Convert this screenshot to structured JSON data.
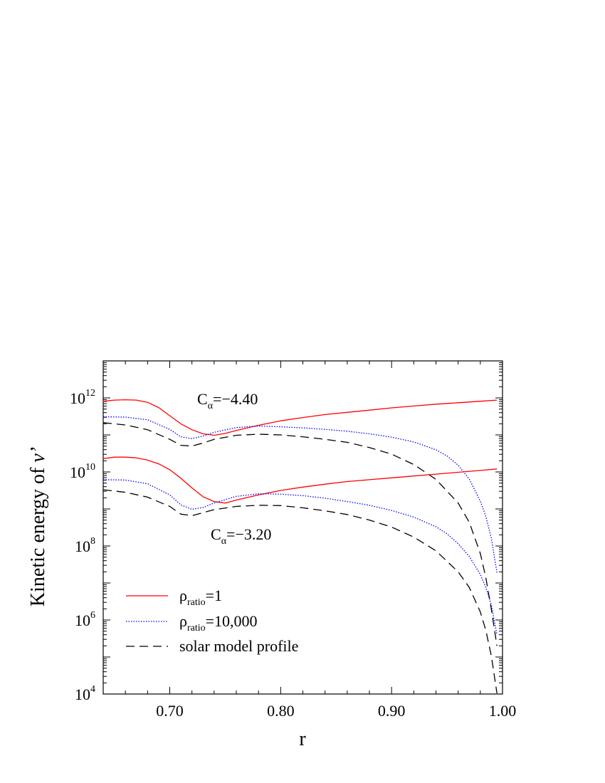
{
  "chart_data": {
    "type": "line",
    "xlabel": "r",
    "ylabel_main": "Kinetic energy of ",
    "ylabel_var": "v’",
    "xlim": [
      0.64,
      1.0
    ],
    "ylim_log10": [
      4,
      13
    ],
    "y_scale": "log",
    "x_ticks": [
      {
        "value": 0.7,
        "label": "0.70"
      },
      {
        "value": 0.8,
        "label": "0.80"
      },
      {
        "value": 0.9,
        "label": "0.90"
      },
      {
        "value": 1.0,
        "label": "1.00"
      }
    ],
    "y_ticks": [
      {
        "exp": 4,
        "base": "10",
        "sup": "4"
      },
      {
        "exp": 6,
        "base": "10",
        "sup": "6"
      },
      {
        "exp": 8,
        "base": "10",
        "sup": "8"
      },
      {
        "exp": 10,
        "base": "10",
        "sup": "10"
      },
      {
        "exp": 12,
        "base": "10",
        "sup": "12"
      }
    ],
    "annotations": [
      {
        "id": "ann-top",
        "main": "C",
        "sub": "α",
        "rest": "=−4.40"
      },
      {
        "id": "ann-bottom",
        "main": "C",
        "sub": "α",
        "rest": "=−3.20"
      }
    ],
    "legend": {
      "placement": "lower-left",
      "entries": [
        {
          "main": "ρ",
          "sub": "ratio",
          "rest": "=1",
          "style": "solid",
          "color": "#ff0000"
        },
        {
          "main": "ρ",
          "sub": "ratio",
          "rest": "=10,000",
          "style": "dotted",
          "color": "#0000ff"
        },
        {
          "main": "",
          "sub": "",
          "rest": "solar model profile",
          "style": "dashed",
          "color": "#000000"
        }
      ]
    },
    "series": [
      {
        "group": "C_alpha=-4.40",
        "style": "solid",
        "color": "#ff0000",
        "x": [
          0.64,
          0.65,
          0.66,
          0.67,
          0.68,
          0.69,
          0.7,
          0.71,
          0.72,
          0.73,
          0.74,
          0.75,
          0.76,
          0.78,
          0.8,
          0.82,
          0.84,
          0.86,
          0.88,
          0.9,
          0.92,
          0.94,
          0.96,
          0.98,
          0.995
        ],
        "log10y": [
          11.91,
          11.94,
          11.95,
          11.94,
          11.88,
          11.74,
          11.52,
          11.3,
          11.14,
          11.03,
          10.99,
          11.04,
          11.12,
          11.26,
          11.38,
          11.47,
          11.55,
          11.61,
          11.67,
          11.73,
          11.78,
          11.83,
          11.87,
          11.91,
          11.94
        ]
      },
      {
        "group": "C_alpha=-4.40",
        "style": "dotted",
        "color": "#0000ff",
        "x": [
          0.64,
          0.66,
          0.68,
          0.7,
          0.71,
          0.72,
          0.73,
          0.74,
          0.76,
          0.78,
          0.8,
          0.82,
          0.84,
          0.86,
          0.88,
          0.9,
          0.92,
          0.94,
          0.95,
          0.96,
          0.97,
          0.98,
          0.985,
          0.99,
          0.995
        ],
        "log10y": [
          11.49,
          11.48,
          11.41,
          11.15,
          10.95,
          10.9,
          10.97,
          11.07,
          11.2,
          11.24,
          11.22,
          11.19,
          11.15,
          11.1,
          11.03,
          10.94,
          10.81,
          10.6,
          10.43,
          10.18,
          9.81,
          9.21,
          8.8,
          8.2,
          7.28
        ]
      },
      {
        "group": "C_alpha=-4.40",
        "style": "dashed",
        "color": "#000000",
        "x": [
          0.64,
          0.66,
          0.68,
          0.7,
          0.71,
          0.72,
          0.73,
          0.74,
          0.76,
          0.78,
          0.8,
          0.82,
          0.84,
          0.86,
          0.88,
          0.9,
          0.92,
          0.94,
          0.96,
          0.97,
          0.98,
          0.985,
          0.99,
          0.995
        ],
        "log10y": [
          11.33,
          11.27,
          11.14,
          10.88,
          10.72,
          10.7,
          10.78,
          10.88,
          10.99,
          11.02,
          11.0,
          10.95,
          10.88,
          10.8,
          10.66,
          10.48,
          10.2,
          9.8,
          9.16,
          8.64,
          7.8,
          7.14,
          6.28,
          5.3
        ]
      },
      {
        "group": "C_alpha=-3.20",
        "style": "solid",
        "color": "#ff0000",
        "x": [
          0.64,
          0.65,
          0.66,
          0.67,
          0.68,
          0.69,
          0.7,
          0.71,
          0.72,
          0.73,
          0.74,
          0.75,
          0.76,
          0.78,
          0.8,
          0.82,
          0.84,
          0.86,
          0.88,
          0.9,
          0.92,
          0.94,
          0.96,
          0.98,
          0.995
        ],
        "log10y": [
          10.36,
          10.4,
          10.4,
          10.38,
          10.32,
          10.22,
          10.06,
          9.83,
          9.57,
          9.33,
          9.2,
          9.16,
          9.24,
          9.38,
          9.5,
          9.59,
          9.67,
          9.74,
          9.79,
          9.84,
          9.89,
          9.94,
          9.99,
          10.04,
          10.08
        ]
      },
      {
        "group": "C_alpha=-3.20",
        "style": "dotted",
        "color": "#0000ff",
        "x": [
          0.64,
          0.66,
          0.68,
          0.7,
          0.71,
          0.72,
          0.73,
          0.74,
          0.76,
          0.78,
          0.8,
          0.82,
          0.84,
          0.86,
          0.88,
          0.9,
          0.92,
          0.94,
          0.95,
          0.96,
          0.97,
          0.98,
          0.985,
          0.99,
          0.995
        ],
        "log10y": [
          9.79,
          9.78,
          9.68,
          9.38,
          9.11,
          8.99,
          9.04,
          9.16,
          9.34,
          9.41,
          9.4,
          9.36,
          9.29,
          9.2,
          9.1,
          8.96,
          8.78,
          8.52,
          8.33,
          8.06,
          7.72,
          7.23,
          6.88,
          6.4,
          5.6
        ]
      },
      {
        "group": "C_alpha=-3.20",
        "style": "dashed",
        "color": "#000000",
        "x": [
          0.64,
          0.66,
          0.68,
          0.7,
          0.71,
          0.72,
          0.73,
          0.74,
          0.76,
          0.78,
          0.8,
          0.82,
          0.84,
          0.86,
          0.88,
          0.9,
          0.92,
          0.94,
          0.96,
          0.97,
          0.98,
          0.985,
          0.99,
          0.995
        ],
        "log10y": [
          9.52,
          9.45,
          9.32,
          9.07,
          8.86,
          8.82,
          8.9,
          8.98,
          9.07,
          9.1,
          9.09,
          9.03,
          8.95,
          8.85,
          8.7,
          8.51,
          8.24,
          7.87,
          7.3,
          6.88,
          6.22,
          5.72,
          5.02,
          4.02
        ]
      }
    ]
  }
}
